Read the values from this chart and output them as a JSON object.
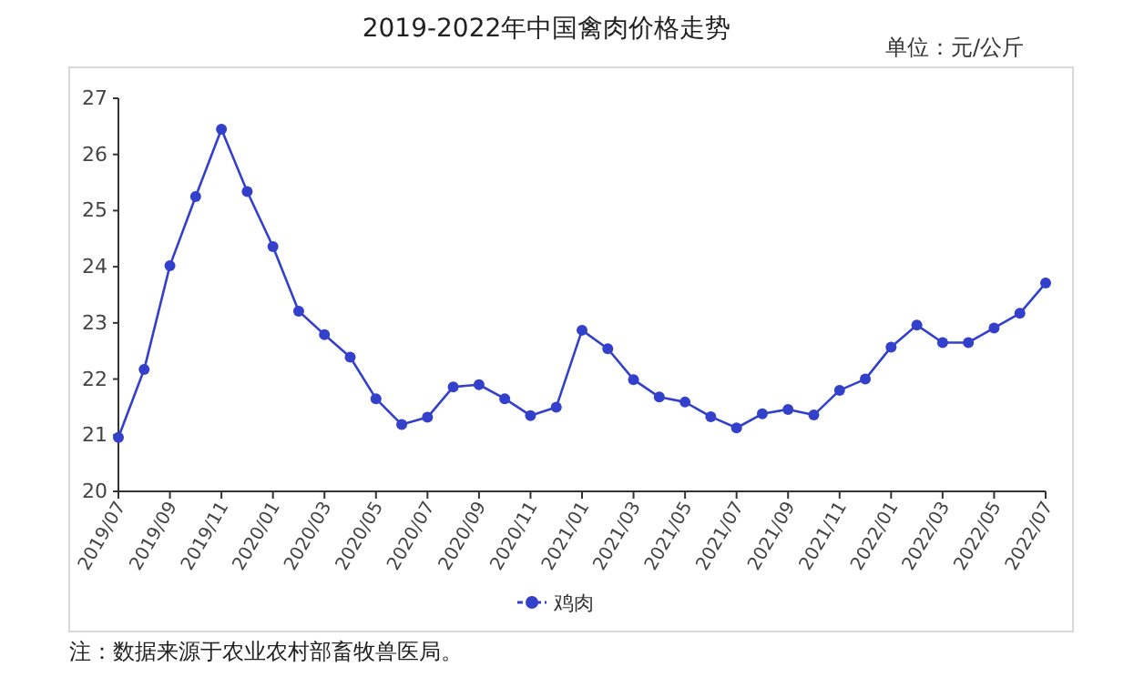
{
  "chart_data": {
    "type": "line",
    "title": "2019-2022年中国禽肉价格走势",
    "annotations": [
      "单位：元/公斤",
      "注：数据来源于农业农村部畜牧兽医局。"
    ],
    "categories": [
      "2019/07",
      null,
      "2019/09",
      null,
      "2019/11",
      null,
      "2020/01",
      null,
      "2020/03",
      null,
      "2020/05",
      null,
      "2020/07",
      null,
      "2020/09",
      null,
      "2020/11",
      null,
      "2021/01",
      null,
      "2021/03",
      null,
      "2021/05",
      null,
      "2021/07",
      null,
      "2021/09",
      null,
      "2021/11",
      null,
      "2022/01",
      null,
      "2022/03",
      null,
      "2022/05",
      null,
      "2022/07"
    ],
    "series": [
      {
        "name": "鸡肉",
        "color": "#3340cc",
        "values": [
          20.96,
          22.17,
          24.02,
          25.25,
          26.45,
          25.34,
          24.36,
          23.21,
          22.79,
          22.39,
          21.65,
          21.19,
          21.32,
          21.86,
          21.9,
          21.65,
          21.35,
          21.5,
          22.87,
          22.54,
          21.99,
          21.68,
          21.59,
          21.33,
          21.13,
          21.38,
          21.46,
          21.36,
          21.8,
          22.0,
          22.57,
          22.96,
          22.65,
          22.65,
          22.91,
          23.17,
          23.71
        ]
      }
    ],
    "ylim": [
      20,
      27
    ],
    "yticks": [
      20,
      21,
      22,
      23,
      24,
      25,
      26,
      27
    ],
    "marker": "circle",
    "line_style": "solid",
    "grid": false,
    "legend": "bottom"
  }
}
